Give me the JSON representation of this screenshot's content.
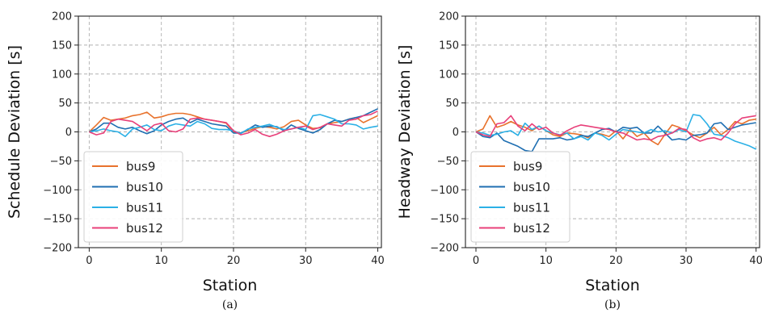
{
  "chart_data": [
    {
      "type": "line",
      "caption": "(a)",
      "xlabel": "Station",
      "ylabel": "Schedule Deviation [s]",
      "xlim": [
        -1.5,
        40.5
      ],
      "ylim": [
        -200,
        200
      ],
      "xticks": [
        0,
        10,
        20,
        30,
        40
      ],
      "yticks": [
        -200,
        -150,
        -100,
        -50,
        0,
        50,
        100,
        150,
        200
      ],
      "grid": true,
      "legend_position": "lower-left",
      "series": [
        {
          "name": "bus9",
          "color": "#e8722c",
          "values": [
            0,
            12,
            25,
            20,
            22,
            24,
            28,
            30,
            34,
            24,
            26,
            30,
            32,
            32,
            30,
            26,
            22,
            20,
            18,
            15,
            0,
            -2,
            2,
            6,
            9,
            8,
            5,
            9,
            18,
            20,
            12,
            6,
            7,
            14,
            16,
            18,
            22,
            25,
            16,
            22,
            28
          ]
        },
        {
          "name": "bus10",
          "color": "#1f6fb2",
          "values": [
            0,
            5,
            15,
            15,
            8,
            5,
            8,
            2,
            -3,
            2,
            12,
            18,
            22,
            24,
            16,
            22,
            18,
            14,
            12,
            10,
            -2,
            -2,
            4,
            12,
            8,
            10,
            9,
            2,
            12,
            6,
            2,
            -2,
            4,
            14,
            20,
            18,
            22,
            25,
            28,
            34,
            40
          ]
        },
        {
          "name": "bus11",
          "color": "#2bb0e6",
          "values": [
            0,
            2,
            5,
            2,
            0,
            -8,
            5,
            8,
            12,
            4,
            2,
            10,
            14,
            12,
            10,
            18,
            14,
            6,
            4,
            4,
            2,
            -3,
            5,
            8,
            10,
            13,
            8,
            4,
            5,
            8,
            4,
            28,
            30,
            26,
            22,
            14,
            14,
            12,
            5,
            8,
            10
          ]
        },
        {
          "name": "bus12",
          "color": "#e8407a",
          "values": [
            0,
            -5,
            -2,
            18,
            22,
            20,
            18,
            10,
            2,
            12,
            15,
            2,
            0,
            5,
            22,
            24,
            22,
            20,
            18,
            16,
            2,
            -5,
            -2,
            4,
            -4,
            -8,
            -4,
            2,
            5,
            8,
            10,
            4,
            8,
            14,
            12,
            10,
            20,
            22,
            28,
            30,
            36
          ]
        }
      ]
    },
    {
      "type": "line",
      "caption": "(b)",
      "xlabel": "Station",
      "ylabel": "Headway Deviation [s]",
      "xlim": [
        -1.5,
        40.5
      ],
      "ylim": [
        -200,
        200
      ],
      "xticks": [
        0,
        10,
        20,
        30,
        40
      ],
      "yticks": [
        -200,
        -150,
        -100,
        -50,
        0,
        50,
        100,
        150,
        200
      ],
      "grid": true,
      "legend_position": "lower-left",
      "series": [
        {
          "name": "bus9",
          "color": "#e8722c",
          "values": [
            0,
            5,
            28,
            8,
            12,
            18,
            12,
            8,
            2,
            10,
            2,
            -5,
            -8,
            -2,
            -3,
            -5,
            -10,
            -2,
            -4,
            -8,
            2,
            -12,
            4,
            -8,
            -2,
            -15,
            -22,
            -4,
            12,
            8,
            2,
            -5,
            -10,
            -2,
            8,
            -5,
            4,
            18,
            14,
            20,
            22
          ]
        },
        {
          "name": "bus10",
          "color": "#1f6fb2",
          "values": [
            0,
            -8,
            -10,
            -2,
            -15,
            -20,
            -25,
            -32,
            -34,
            -12,
            -12,
            -12,
            -10,
            -14,
            -12,
            -6,
            -8,
            -2,
            4,
            6,
            0,
            8,
            6,
            8,
            -2,
            -2,
            10,
            -2,
            -14,
            -12,
            -14,
            -6,
            -5,
            -2,
            14,
            16,
            4,
            8,
            12,
            14,
            16
          ]
        },
        {
          "name": "bus11",
          "color": "#2bb0e6",
          "values": [
            0,
            -2,
            -6,
            -4,
            0,
            2,
            -6,
            15,
            4,
            10,
            2,
            -2,
            -5,
            -2,
            -12,
            -8,
            -14,
            -2,
            -6,
            -14,
            -4,
            4,
            2,
            0,
            -2,
            4,
            0,
            2,
            -2,
            4,
            0,
            30,
            28,
            14,
            -4,
            -6,
            -10,
            -16,
            -20,
            -24,
            -30
          ]
        },
        {
          "name": "bus12",
          "color": "#e8407a",
          "values": [
            0,
            -5,
            -8,
            14,
            16,
            28,
            10,
            2,
            14,
            4,
            8,
            -2,
            -6,
            2,
            8,
            12,
            10,
            8,
            6,
            4,
            0,
            -2,
            -8,
            -14,
            -12,
            -14,
            -8,
            -6,
            -2,
            6,
            4,
            -10,
            -16,
            -12,
            -10,
            -14,
            -2,
            14,
            24,
            26,
            28
          ]
        }
      ]
    }
  ]
}
